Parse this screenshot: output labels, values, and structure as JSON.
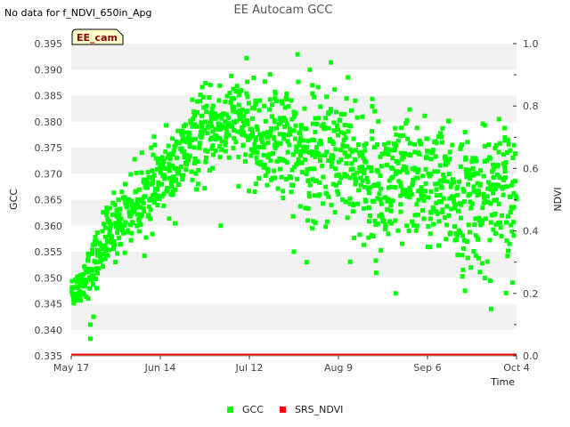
{
  "chart_data": {
    "type": "scatter",
    "title": "EE Autocam GCC",
    "note": "No data for f_NDVI_650in_Apg",
    "site_badge": "EE_cam",
    "xlabel": "Time",
    "ylabel": "GCC",
    "y2label": "NDVI",
    "xlim_day": [
      0,
      140
    ],
    "ylim": [
      0.335,
      0.395
    ],
    "y2lim": [
      0.0,
      1.0
    ],
    "x_ticks": [
      {
        "day": 0,
        "label": "May 17"
      },
      {
        "day": 28,
        "label": "Jun 14"
      },
      {
        "day": 56,
        "label": "Jul 12"
      },
      {
        "day": 84,
        "label": "Aug 9"
      },
      {
        "day": 112,
        "label": "Sep 6"
      },
      {
        "day": 140,
        "label": "Oct 4"
      }
    ],
    "y_ticks": [
      "0.335",
      "0.340",
      "0.345",
      "0.350",
      "0.355",
      "0.360",
      "0.365",
      "0.370",
      "0.375",
      "0.380",
      "0.385",
      "0.390",
      "0.395"
    ],
    "y2_ticks": [
      "0.0",
      "0.2",
      "0.4",
      "0.6",
      "0.8",
      "1.0"
    ],
    "series": [
      {
        "name": "GCC",
        "color": "#00ff00",
        "axis": "left",
        "marker": "square",
        "trend": [
          {
            "day": 0,
            "gcc": 0.3475
          },
          {
            "day": 4,
            "gcc": 0.35
          },
          {
            "day": 8,
            "gcc": 0.3545
          },
          {
            "day": 12,
            "gcc": 0.359
          },
          {
            "day": 16,
            "gcc": 0.362
          },
          {
            "day": 20,
            "gcc": 0.364
          },
          {
            "day": 24,
            "gcc": 0.3665
          },
          {
            "day": 28,
            "gcc": 0.369
          },
          {
            "day": 32,
            "gcc": 0.371
          },
          {
            "day": 36,
            "gcc": 0.3745
          },
          {
            "day": 40,
            "gcc": 0.377
          },
          {
            "day": 44,
            "gcc": 0.3785
          },
          {
            "day": 48,
            "gcc": 0.3795
          },
          {
            "day": 52,
            "gcc": 0.38
          },
          {
            "day": 56,
            "gcc": 0.378
          },
          {
            "day": 60,
            "gcc": 0.376
          },
          {
            "day": 64,
            "gcc": 0.377
          },
          {
            "day": 68,
            "gcc": 0.376
          },
          {
            "day": 72,
            "gcc": 0.374
          },
          {
            "day": 76,
            "gcc": 0.372
          },
          {
            "day": 80,
            "gcc": 0.374
          },
          {
            "day": 84,
            "gcc": 0.375
          },
          {
            "day": 88,
            "gcc": 0.372
          },
          {
            "day": 92,
            "gcc": 0.369
          },
          {
            "day": 96,
            "gcc": 0.368
          },
          {
            "day": 100,
            "gcc": 0.367
          },
          {
            "day": 104,
            "gcc": 0.368
          },
          {
            "day": 108,
            "gcc": 0.369
          },
          {
            "day": 112,
            "gcc": 0.368
          },
          {
            "day": 116,
            "gcc": 0.367
          },
          {
            "day": 120,
            "gcc": 0.365
          },
          {
            "day": 124,
            "gcc": 0.364
          },
          {
            "day": 128,
            "gcc": 0.365
          },
          {
            "day": 132,
            "gcc": 0.3655
          },
          {
            "day": 136,
            "gcc": 0.365
          },
          {
            "day": 140,
            "gcc": 0.364
          }
        ],
        "spread": [
          {
            "day": 0,
            "sd": 0.0015
          },
          {
            "day": 12,
            "sd": 0.003
          },
          {
            "day": 28,
            "sd": 0.0035
          },
          {
            "day": 56,
            "sd": 0.0045
          },
          {
            "day": 84,
            "sd": 0.007
          },
          {
            "day": 112,
            "sd": 0.006
          },
          {
            "day": 140,
            "sd": 0.007
          }
        ],
        "points_per_day": 10,
        "outliers": [
          {
            "day": 6,
            "gcc": 0.3383
          },
          {
            "day": 6,
            "gcc": 0.341
          },
          {
            "day": 7,
            "gcc": 0.3425
          },
          {
            "day": 47,
            "gcc": 0.36
          },
          {
            "day": 70,
            "gcc": 0.355
          },
          {
            "day": 74,
            "gcc": 0.353
          },
          {
            "day": 102,
            "gcc": 0.347
          },
          {
            "day": 132,
            "gcc": 0.344
          },
          {
            "day": 87,
            "gcc": 0.3885
          },
          {
            "day": 75,
            "gcc": 0.39
          }
        ]
      },
      {
        "name": "SRS_NDVI",
        "color": "#ff0000",
        "axis": "right",
        "marker": "square",
        "points": [
          {
            "day": 0,
            "ndvi": 0.0
          },
          {
            "day": 140,
            "ndvi": 0.0
          }
        ]
      }
    ],
    "legend": {
      "position": "bottom-center",
      "entries": [
        "GCC",
        "SRS_NDVI"
      ]
    },
    "grid": {
      "horizontal_bands": true
    }
  }
}
